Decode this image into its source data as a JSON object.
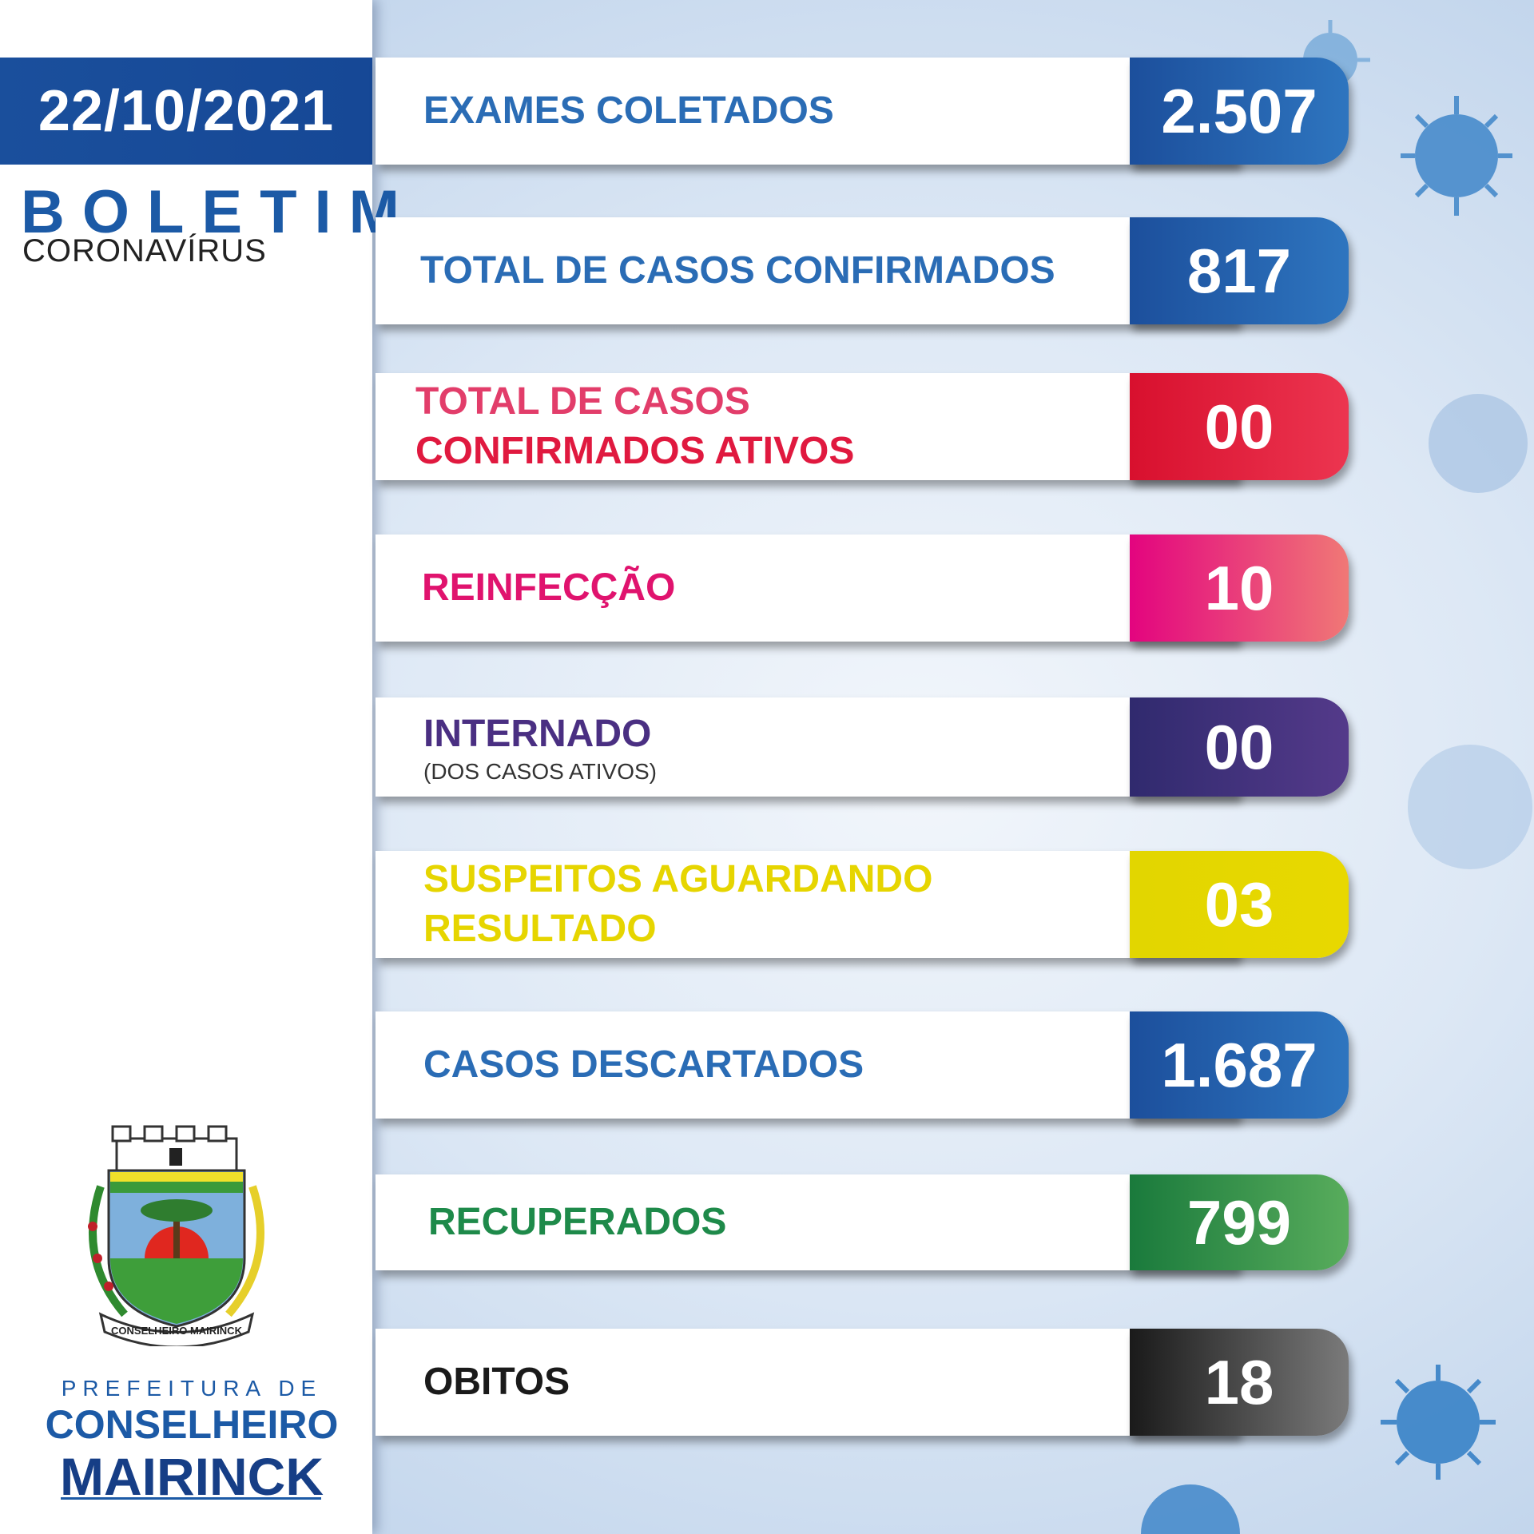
{
  "header": {
    "date": "22/10/2021",
    "title": "BOLETIM",
    "subtitle": "CORONAVÍRUS"
  },
  "crest": {
    "banner_text": "CONSELHEIRO MAIRINCK"
  },
  "footer": {
    "line1": "PREFEITURA DE",
    "line2": "CONSELHEIRO",
    "line3": "MAIRINCK"
  },
  "stats": [
    {
      "label": "EXAMES COLETADOS",
      "value": "2.507",
      "color": "#2a6cb5"
    },
    {
      "label": "TOTAL DE CASOS CONFIRMADOS",
      "value": "817",
      "color": "#2a6cb5"
    },
    {
      "label_line1": "TOTAL DE CASOS",
      "label_line2": "CONFIRMADOS ATIVOS",
      "value": "00",
      "color": "#e0193f"
    },
    {
      "label": "REINFECÇÃO",
      "value": "10",
      "color": "#e0136e"
    },
    {
      "label": "INTERNADO",
      "sublabel": "(DOS CASOS ATIVOS)",
      "value": "00",
      "color": "#4a2f82"
    },
    {
      "label_line1": "SUSPEITOS AGUARDANDO",
      "label_line2": "RESULTADO",
      "value": "03",
      "color": "#e6d500"
    },
    {
      "label": "CASOS DESCARTADOS",
      "value": "1.687",
      "color": "#2a6cb5"
    },
    {
      "label": "RECUPERADOS",
      "value": "799",
      "color": "#1e8a4a"
    },
    {
      "label": "OBITOS",
      "value": "18",
      "color": "#1a1a1a"
    }
  ]
}
